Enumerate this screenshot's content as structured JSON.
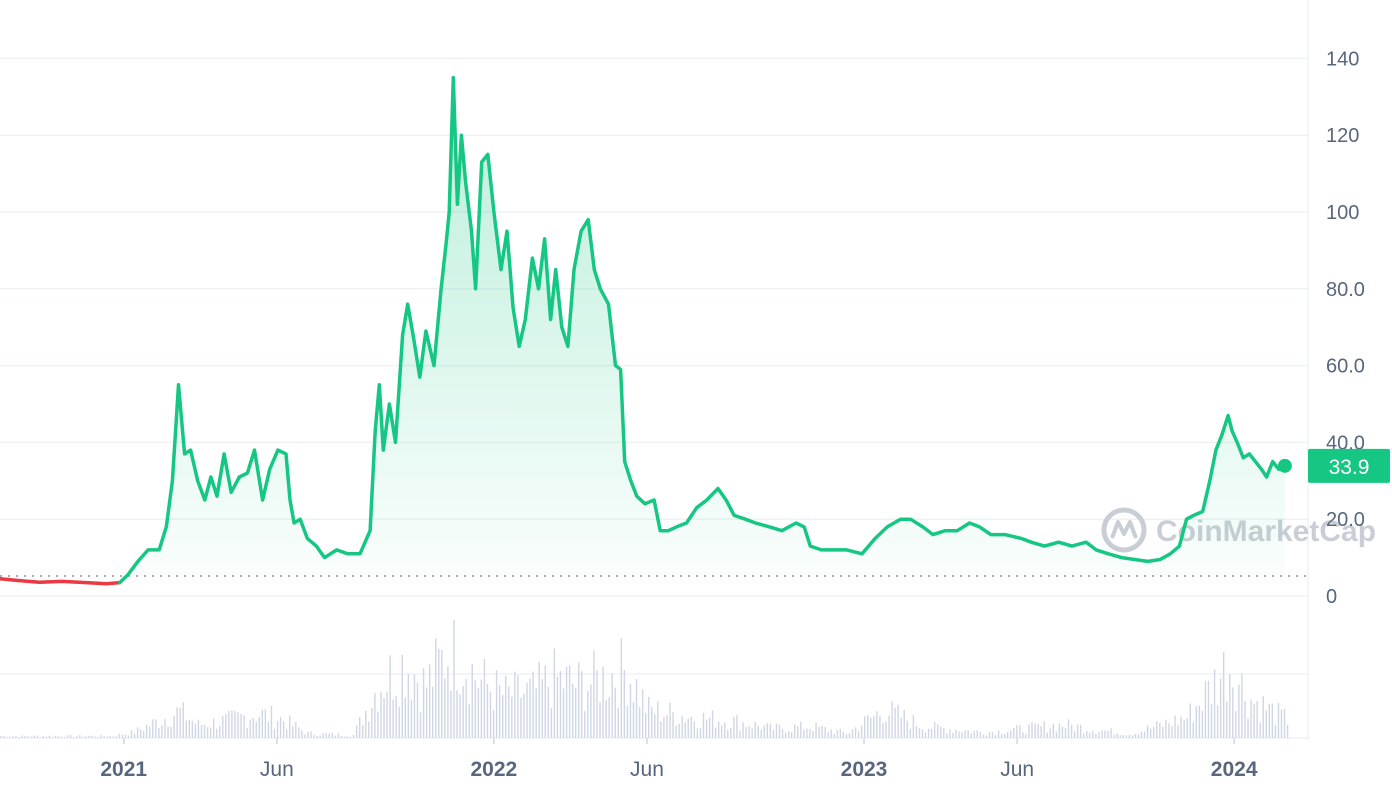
{
  "chart_data": {
    "type": "area",
    "watermark": "CoinMarketCap",
    "current_price_label": "33.9",
    "baseline_value": 5.2,
    "ylim": [
      0,
      150
    ],
    "y_ticks": [
      "0",
      "20.0",
      "40.0",
      "60.0",
      "80.0",
      "100",
      "120",
      "140"
    ],
    "y_tick_values": [
      0,
      20,
      40,
      60,
      80,
      100,
      120,
      140
    ],
    "x_ticks": [
      {
        "label": "2021",
        "date": "2021-01-01",
        "bold": true
      },
      {
        "label": "Jun",
        "date": "2021-06-01",
        "bold": false
      },
      {
        "label": "2022",
        "date": "2022-01-01",
        "bold": true
      },
      {
        "label": "Jun",
        "date": "2022-06-01",
        "bold": false
      },
      {
        "label": "2023",
        "date": "2023-01-01",
        "bold": true
      },
      {
        "label": "Jun",
        "date": "2023-06-01",
        "bold": false
      },
      {
        "label": "2024",
        "date": "2024-01-01",
        "bold": true
      }
    ],
    "xlim": [
      "2020-09-01",
      "2024-03-02"
    ],
    "colors": {
      "up": "#16c784",
      "down": "#ea3943",
      "grid": "#eff2f5",
      "volume": "#cfd6e4"
    },
    "series": [
      {
        "points": [
          [
            "2020-09-01",
            4.5
          ],
          [
            "2020-09-20",
            4.0
          ],
          [
            "2020-10-10",
            3.6
          ],
          [
            "2020-11-01",
            3.8
          ],
          [
            "2020-11-25",
            3.5
          ],
          [
            "2020-12-15",
            3.2
          ],
          [
            "2020-12-28",
            3.5
          ],
          [
            "2021-01-05",
            5.5
          ],
          [
            "2021-01-15",
            9
          ],
          [
            "2021-01-25",
            12
          ],
          [
            "2021-02-05",
            12
          ],
          [
            "2021-02-12",
            18
          ],
          [
            "2021-02-18",
            30
          ],
          [
            "2021-02-24",
            55
          ],
          [
            "2021-03-02",
            37
          ],
          [
            "2021-03-08",
            38
          ],
          [
            "2021-03-15",
            30
          ],
          [
            "2021-03-22",
            25
          ],
          [
            "2021-03-28",
            31
          ],
          [
            "2021-04-03",
            26
          ],
          [
            "2021-04-10",
            37
          ],
          [
            "2021-04-17",
            27
          ],
          [
            "2021-04-25",
            31
          ],
          [
            "2021-05-03",
            32
          ],
          [
            "2021-05-10",
            38
          ],
          [
            "2021-05-18",
            25
          ],
          [
            "2021-05-25",
            33
          ],
          [
            "2021-06-02",
            38
          ],
          [
            "2021-06-10",
            37
          ],
          [
            "2021-06-14",
            25
          ],
          [
            "2021-06-18",
            19
          ],
          [
            "2021-06-24",
            20
          ],
          [
            "2021-07-01",
            15
          ],
          [
            "2021-07-10",
            13
          ],
          [
            "2021-07-18",
            10
          ],
          [
            "2021-07-30",
            12
          ],
          [
            "2021-08-10",
            11
          ],
          [
            "2021-08-22",
            11
          ],
          [
            "2021-09-01",
            17
          ],
          [
            "2021-09-06",
            43
          ],
          [
            "2021-09-10",
            55
          ],
          [
            "2021-09-14",
            38
          ],
          [
            "2021-09-20",
            50
          ],
          [
            "2021-09-26",
            40
          ],
          [
            "2021-10-03",
            68
          ],
          [
            "2021-10-08",
            76
          ],
          [
            "2021-10-14",
            67
          ],
          [
            "2021-10-20",
            57
          ],
          [
            "2021-10-26",
            69
          ],
          [
            "2021-11-03",
            60
          ],
          [
            "2021-11-10",
            80
          ],
          [
            "2021-11-15",
            92
          ],
          [
            "2021-11-18",
            100
          ],
          [
            "2021-11-22",
            135
          ],
          [
            "2021-11-26",
            102
          ],
          [
            "2021-11-30",
            120
          ],
          [
            "2021-12-04",
            108
          ],
          [
            "2021-12-10",
            95
          ],
          [
            "2021-12-14",
            80
          ],
          [
            "2021-12-20",
            113
          ],
          [
            "2021-12-26",
            115
          ],
          [
            "2022-01-01",
            100
          ],
          [
            "2022-01-08",
            85
          ],
          [
            "2022-01-14",
            95
          ],
          [
            "2022-01-20",
            75
          ],
          [
            "2022-01-26",
            65
          ],
          [
            "2022-02-01",
            72
          ],
          [
            "2022-02-08",
            88
          ],
          [
            "2022-02-14",
            80
          ],
          [
            "2022-02-20",
            93
          ],
          [
            "2022-02-26",
            72
          ],
          [
            "2022-03-03",
            85
          ],
          [
            "2022-03-09",
            70
          ],
          [
            "2022-03-15",
            65
          ],
          [
            "2022-03-21",
            85
          ],
          [
            "2022-03-28",
            95
          ],
          [
            "2022-04-04",
            98
          ],
          [
            "2022-04-10",
            85
          ],
          [
            "2022-04-16",
            80
          ],
          [
            "2022-04-24",
            76
          ],
          [
            "2022-05-01",
            60
          ],
          [
            "2022-05-06",
            59
          ],
          [
            "2022-05-10",
            35
          ],
          [
            "2022-05-16",
            30
          ],
          [
            "2022-05-22",
            26
          ],
          [
            "2022-05-30",
            24
          ],
          [
            "2022-06-08",
            25
          ],
          [
            "2022-06-14",
            17
          ],
          [
            "2022-06-22",
            17
          ],
          [
            "2022-06-30",
            18
          ],
          [
            "2022-07-10",
            19
          ],
          [
            "2022-07-20",
            23
          ],
          [
            "2022-07-30",
            25
          ],
          [
            "2022-08-10",
            28
          ],
          [
            "2022-08-18",
            25
          ],
          [
            "2022-08-26",
            21
          ],
          [
            "2022-09-06",
            20
          ],
          [
            "2022-09-16",
            19
          ],
          [
            "2022-09-30",
            18
          ],
          [
            "2022-10-12",
            17
          ],
          [
            "2022-10-26",
            19
          ],
          [
            "2022-11-03",
            18
          ],
          [
            "2022-11-09",
            13
          ],
          [
            "2022-11-20",
            12
          ],
          [
            "2022-12-01",
            12
          ],
          [
            "2022-12-15",
            12
          ],
          [
            "2022-12-30",
            11
          ],
          [
            "2023-01-12",
            15
          ],
          [
            "2023-01-24",
            18
          ],
          [
            "2023-02-06",
            20
          ],
          [
            "2023-02-16",
            20
          ],
          [
            "2023-02-28",
            18
          ],
          [
            "2023-03-10",
            16
          ],
          [
            "2023-03-22",
            17
          ],
          [
            "2023-04-03",
            17
          ],
          [
            "2023-04-15",
            19
          ],
          [
            "2023-04-25",
            18
          ],
          [
            "2023-05-06",
            16
          ],
          [
            "2023-05-20",
            16
          ],
          [
            "2023-06-05",
            15
          ],
          [
            "2023-06-15",
            14
          ],
          [
            "2023-06-28",
            13
          ],
          [
            "2023-07-12",
            14
          ],
          [
            "2023-07-25",
            13
          ],
          [
            "2023-08-08",
            14
          ],
          [
            "2023-08-18",
            12
          ],
          [
            "2023-08-30",
            11
          ],
          [
            "2023-09-12",
            10
          ],
          [
            "2023-09-25",
            9.5
          ],
          [
            "2023-10-08",
            9
          ],
          [
            "2023-10-20",
            9.5
          ],
          [
            "2023-10-30",
            11
          ],
          [
            "2023-11-08",
            13
          ],
          [
            "2023-11-15",
            20
          ],
          [
            "2023-11-22",
            21
          ],
          [
            "2023-12-01",
            22
          ],
          [
            "2023-12-08",
            30
          ],
          [
            "2023-12-14",
            38
          ],
          [
            "2023-12-20",
            42
          ],
          [
            "2023-12-26",
            47
          ],
          [
            "2023-12-30",
            43
          ],
          [
            "2024-01-04",
            40
          ],
          [
            "2024-01-10",
            36
          ],
          [
            "2024-01-16",
            37
          ],
          [
            "2024-01-22",
            35
          ],
          [
            "2024-01-28",
            33
          ],
          [
            "2024-02-02",
            31
          ],
          [
            "2024-02-08",
            35
          ],
          [
            "2024-02-14",
            33
          ],
          [
            "2024-02-20",
            33.9
          ]
        ]
      }
    ],
    "volume": {
      "note": "relative trading volume, unlabeled axis",
      "points": [
        [
          "2020-09-01",
          0.02
        ],
        [
          "2020-12-20",
          0.02
        ],
        [
          "2021-01-10",
          0.06
        ],
        [
          "2021-02-24",
          0.28
        ],
        [
          "2021-03-15",
          0.14
        ],
        [
          "2021-04-10",
          0.18
        ],
        [
          "2021-05-12",
          0.26
        ],
        [
          "2021-06-05",
          0.2
        ],
        [
          "2021-07-01",
          0.05
        ],
        [
          "2021-08-15",
          0.03
        ],
        [
          "2021-09-08",
          0.55
        ],
        [
          "2021-10-05",
          0.8
        ],
        [
          "2021-10-25",
          0.55
        ],
        [
          "2021-11-22",
          1.0
        ],
        [
          "2021-12-15",
          0.62
        ],
        [
          "2022-01-10",
          0.45
        ],
        [
          "2022-02-08",
          0.48
        ],
        [
          "2022-03-01",
          0.62
        ],
        [
          "2022-03-25",
          0.56
        ],
        [
          "2022-04-10",
          0.6
        ],
        [
          "2022-05-12",
          0.72
        ],
        [
          "2022-06-01",
          0.3
        ],
        [
          "2022-07-15",
          0.22
        ],
        [
          "2022-08-25",
          0.18
        ],
        [
          "2022-10-01",
          0.1
        ],
        [
          "2022-11-10",
          0.12
        ],
        [
          "2022-12-15",
          0.05
        ],
        [
          "2023-01-20",
          0.3
        ],
        [
          "2023-03-01",
          0.12
        ],
        [
          "2023-05-01",
          0.06
        ],
        [
          "2023-07-15",
          0.14
        ],
        [
          "2023-09-20",
          0.04
        ],
        [
          "2023-11-15",
          0.22
        ],
        [
          "2023-12-10",
          0.55
        ],
        [
          "2023-12-26",
          0.78
        ],
        [
          "2024-01-15",
          0.42
        ],
        [
          "2024-02-20",
          0.2
        ]
      ]
    }
  }
}
